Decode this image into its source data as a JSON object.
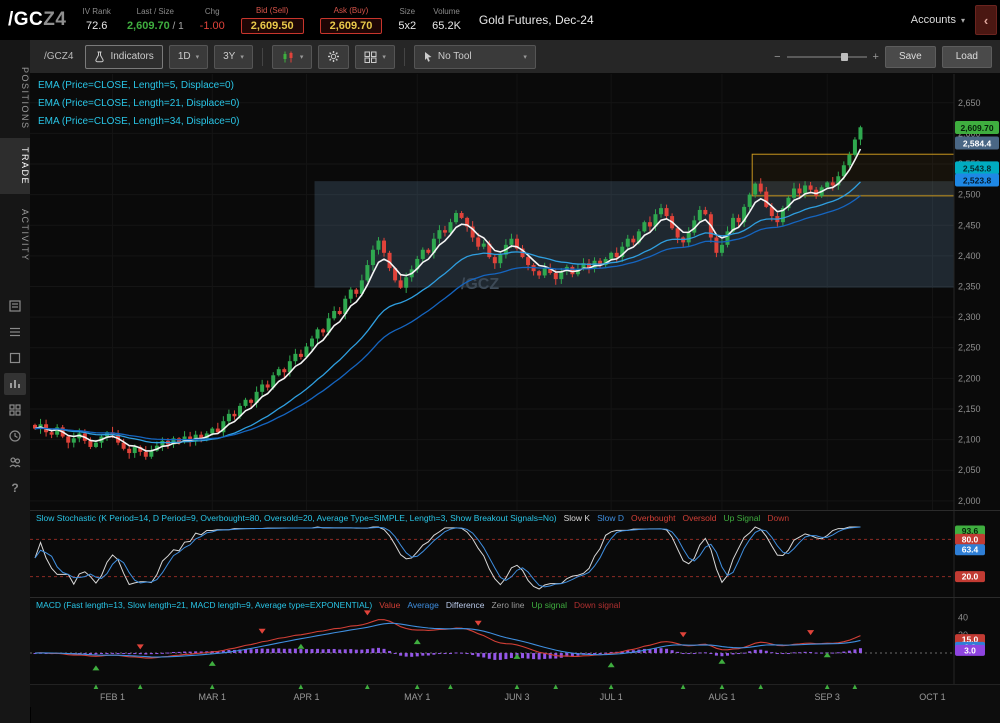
{
  "header": {
    "symbol_root": "/GC",
    "symbol_suffix": "Z4",
    "fields": [
      {
        "label": "IV Rank",
        "value": "72.6"
      },
      {
        "label": "Last / Size",
        "value": "2,609.70",
        "suffix": " / 1"
      },
      {
        "label": "Chg",
        "value": "-1.00"
      },
      {
        "label": "Bid (Sell)",
        "value": "2,609.50"
      },
      {
        "label": "Ask (Buy)",
        "value": "2,609.70"
      },
      {
        "label": "Size",
        "value": "5x2"
      },
      {
        "label": "Volume",
        "value": "65.2K"
      }
    ],
    "description": "Gold Futures, Dec-24",
    "accounts_label": "Accounts"
  },
  "sidebar": {
    "tabs": [
      "POSITIONS",
      "TRADE",
      "ACTIVITY"
    ],
    "active_tab": "TRADE"
  },
  "toolbar": {
    "symbol_tab": "/GCZ4",
    "indicators_label": "Indicators",
    "timeframe_label": "1D",
    "range_label": "3Y",
    "tool_label": "No Tool",
    "save_label": "Save",
    "load_label": "Load"
  },
  "chart_labels": {
    "ema": [
      "EMA (Price=CLOSE, Length=5, Displace=0)",
      "EMA (Price=CLOSE, Length=21, Displace=0)",
      "EMA (Price=CLOSE, Length=34, Displace=0)"
    ]
  },
  "legends": {
    "stochastic": [
      {
        "text": "Slow Stochastic (K Period=14, D Period=9, Overbought=80, Oversold=20, Average Type=SIMPLE, Length=3, Show Breakout Signals=No)",
        "color": "#29c5e6"
      },
      {
        "text": "Slow K",
        "color": "#d8d8d8"
      },
      {
        "text": "Slow D",
        "color": "#3f8fe0"
      },
      {
        "text": "Overbought",
        "color": "#d23f36"
      },
      {
        "text": "Oversold",
        "color": "#d23f36"
      },
      {
        "text": "Up Signal",
        "color": "#3fae3f"
      },
      {
        "text": "Down",
        "color": "#c03a32"
      }
    ],
    "macd": [
      {
        "text": "MACD (Fast length=13, Slow length=21, MACD length=9, Average type=EXPONENTIAL)",
        "color": "#29c5e6"
      },
      {
        "text": "Value",
        "color": "#d23f36"
      },
      {
        "text": "Average",
        "color": "#3f8fe0"
      },
      {
        "text": "Difference",
        "color": "#b8c8e8"
      },
      {
        "text": "Zero line",
        "color": "#9a9a9a"
      },
      {
        "text": "Up signal",
        "color": "#3fae3f"
      },
      {
        "text": "Down signal",
        "color": "#b03030"
      }
    ]
  },
  "chart_data": {
    "type": "candlestick",
    "symbol": "/GCZ4",
    "watermark": "/GCZ",
    "ylim": [
      1985,
      2697
    ],
    "yticks": [
      2000,
      2050,
      2100,
      2150,
      2200,
      2250,
      2300,
      2350,
      2400,
      2450,
      2500,
      2550,
      2600,
      2650
    ],
    "ytick_labels": [
      "2,000",
      "2,050",
      "2,100",
      "2,150",
      "2,200",
      "2,250",
      "2,300",
      "2,350",
      "2,400",
      "2,450",
      "2,500",
      "2,550",
      "2,600",
      "2,650"
    ],
    "colors": {
      "up": "#2fa84f",
      "down": "#e0433a"
    },
    "closes": [
      2118,
      2125,
      2112,
      2108,
      2120,
      2105,
      2095,
      2102,
      2110,
      2098,
      2088,
      2095,
      2105,
      2112,
      2108,
      2095,
      2085,
      2078,
      2088,
      2080,
      2072,
      2082,
      2090,
      2098,
      2092,
      2102,
      2096,
      2105,
      2098,
      2108,
      2102,
      2110,
      2118,
      2112,
      2130,
      2142,
      2138,
      2155,
      2165,
      2160,
      2178,
      2190,
      2185,
      2205,
      2215,
      2210,
      2228,
      2240,
      2235,
      2252,
      2265,
      2280,
      2275,
      2298,
      2310,
      2305,
      2330,
      2345,
      2338,
      2360,
      2385,
      2410,
      2425,
      2405,
      2380,
      2360,
      2348,
      2365,
      2378,
      2395,
      2410,
      2405,
      2428,
      2442,
      2438,
      2455,
      2470,
      2462,
      2448,
      2430,
      2415,
      2420,
      2398,
      2388,
      2402,
      2418,
      2428,
      2412,
      2398,
      2385,
      2375,
      2368,
      2380,
      2372,
      2362,
      2375,
      2382,
      2370,
      2378,
      2388,
      2380,
      2392,
      2385,
      2395,
      2405,
      2398,
      2415,
      2428,
      2422,
      2440,
      2455,
      2448,
      2468,
      2478,
      2465,
      2445,
      2430,
      2422,
      2438,
      2458,
      2475,
      2468,
      2430,
      2405,
      2418,
      2440,
      2462,
      2455,
      2480,
      2500,
      2518,
      2505,
      2480,
      2465,
      2455,
      2478,
      2495,
      2510,
      2502,
      2515,
      2508,
      2498,
      2512,
      2520,
      2515,
      2530,
      2548,
      2565,
      2590,
      2610
    ],
    "month_ticks": [
      {
        "label": "FEB 1",
        "i": 14
      },
      {
        "label": "MAR 1",
        "i": 32
      },
      {
        "label": "APR 1",
        "i": 49
      },
      {
        "label": "MAY 1",
        "i": 69
      },
      {
        "label": "JUN 3",
        "i": 87
      },
      {
        "label": "JUL 1",
        "i": 104
      },
      {
        "label": "AUG 1",
        "i": 124
      },
      {
        "label": "SEP 3",
        "i": 143
      },
      {
        "label": "OCT 1",
        "i": 162
      }
    ],
    "emas": [
      {
        "length": 5,
        "color": "#f5f5f5",
        "width": 1.6
      },
      {
        "length": 21,
        "color": "#2f9fe0",
        "width": 1.3
      },
      {
        "length": 34,
        "color": "#1565c0",
        "width": 1.3
      }
    ],
    "price_bubbles": [
      {
        "text": "2,609.70",
        "price": 2609.7,
        "bg": "#3fae3f",
        "fg": "#06220a"
      },
      {
        "text": "2,584.4",
        "price": 2584.4,
        "bg": "#4a6785",
        "fg": "#ffffff"
      },
      {
        "text": "2,543.8",
        "price": 2543.8,
        "bg": "#00acc1",
        "fg": "#062a2e"
      },
      {
        "text": "2,523.8",
        "price": 2523.8,
        "bg": "#1e88e5",
        "fg": "#041a2e"
      }
    ],
    "regions": [
      {
        "name": "consolidation-zone",
        "i1": 51,
        "i2": 166,
        "p1": 2522,
        "p2": 2348,
        "fill": "rgba(110,150,185,0.22)",
        "stroke": "none"
      },
      {
        "name": "breakout-box",
        "i1": 130,
        "i2": 166,
        "p1": 2566,
        "p2": 2498,
        "fill": "rgba(220,160,40,0.06)",
        "stroke": "#c8961e"
      }
    ],
    "signal_arrows": [
      11,
      19,
      32,
      48,
      60,
      69,
      75,
      87,
      94,
      104,
      117,
      124,
      131,
      143,
      148
    ],
    "studies": {
      "stochastic": {
        "k_period": 14,
        "d_period": 9,
        "overbought": 80,
        "oversold": 20,
        "ylim": [
          0,
          100
        ],
        "bubbles": [
          {
            "text": "93.6",
            "v": 93.6,
            "bg": "#3fae3f",
            "fg": "#06220a"
          },
          {
            "text": "80.0",
            "v": 80,
            "bg": "#c23b33",
            "fg": "#ffffff"
          },
          {
            "text": "63.4",
            "v": 63.4,
            "bg": "#2f7fd6",
            "fg": "#ffffff"
          },
          {
            "text": "20.0",
            "v": 20,
            "bg": "#c23b33",
            "fg": "#ffffff"
          }
        ]
      },
      "macd": {
        "fast": 13,
        "slow": 21,
        "signal": 9,
        "ylim": [
          -28,
          46
        ],
        "ticks": [
          {
            "v": 40,
            "text": "40"
          },
          {
            "v": 20,
            "text": "20"
          }
        ],
        "bubbles": [
          {
            "text": "15.0",
            "v": 15,
            "bg": "#c23b33",
            "fg": "#ffffff"
          },
          {
            "text": "6.3",
            "v": 6.3,
            "bg": "#2f7fd6",
            "fg": "#ffffff"
          },
          {
            "text": "3.0",
            "v": 3,
            "bg": "#8e44e0",
            "fg": "#ffffff"
          }
        ],
        "up_arrows": [
          11,
          32,
          48,
          69,
          87,
          104,
          124,
          143
        ],
        "down_arrows": [
          19,
          41,
          60,
          80,
          117,
          140
        ]
      }
    }
  }
}
